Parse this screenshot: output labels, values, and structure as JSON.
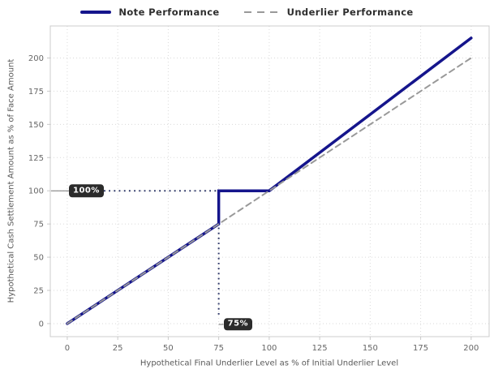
{
  "legend": {
    "items": [
      {
        "label": "Note Performance",
        "color": "#15158c",
        "style": "solid"
      },
      {
        "label": "Underlier Performance",
        "color": "#999999",
        "style": "dashed"
      }
    ]
  },
  "chart_data": {
    "type": "line",
    "title": "",
    "xlabel": "Hypothetical Final Underlier Level as % of Initial Underlier Level",
    "ylabel": "Hypothetical Cash Settlement Amount as % of Face Amount",
    "xlim": [
      -8.4,
      208.9
    ],
    "ylim": [
      -9.8,
      224.1
    ],
    "xticks": [
      0,
      25,
      50,
      75,
      100,
      125,
      150,
      175,
      200
    ],
    "yticks": [
      0,
      25,
      50,
      75,
      100,
      125,
      150,
      175,
      200
    ],
    "grid": true,
    "grid_style": "dotted",
    "legend_position": "top-center",
    "series": [
      {
        "name": "Note Performance",
        "color": "#15158c",
        "width": 3.5,
        "dash": null,
        "points": [
          [
            0,
            0
          ],
          [
            75,
            75
          ],
          [
            75,
            100
          ],
          [
            100,
            100
          ],
          [
            200,
            215
          ]
        ]
      },
      {
        "name": "Underlier Performance",
        "color": "#999999",
        "width": 2,
        "dash": "7 5",
        "points": [
          [
            0,
            0
          ],
          [
            200,
            200
          ]
        ]
      }
    ],
    "annotations": [
      {
        "label": "100%",
        "type": "hline-leader",
        "y": 100,
        "x_from": 0,
        "x_to": 75
      },
      {
        "label": "75%",
        "type": "vline-leader",
        "x": 75,
        "y_from": 0,
        "y_to": 100
      }
    ],
    "annotation_dot_color": "#2b3566",
    "annotation_box": {
      "bg": "#2b2b2b",
      "fg": "#ffffff"
    },
    "spine_color": "#cccccc",
    "grid_color": "#dadada",
    "tick_color": "#c8c8c8"
  }
}
